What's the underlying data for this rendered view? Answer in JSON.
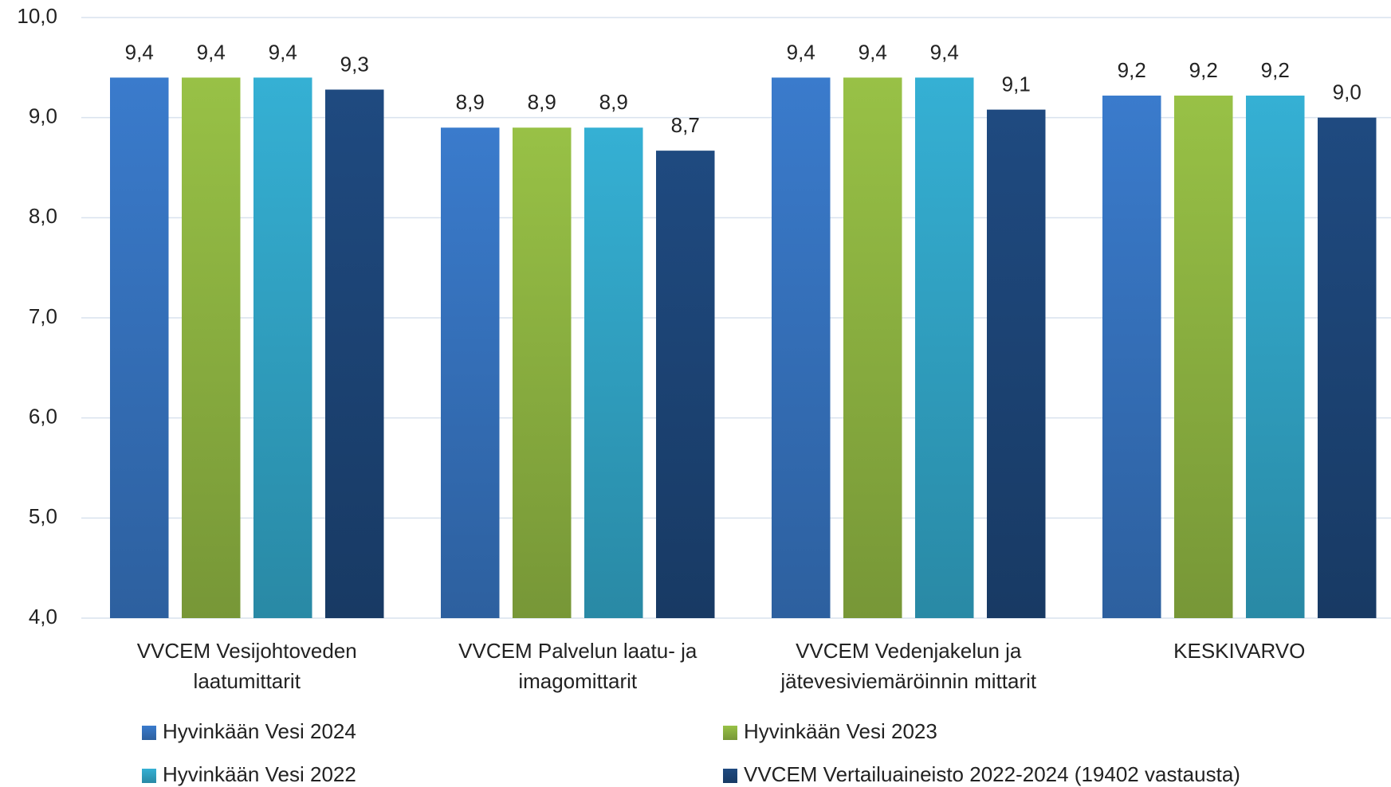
{
  "chart_data": {
    "type": "bar",
    "categories": [
      "VVCEM Vesijohtoveden laatumittarit",
      "VVCEM Palvelun laatu- ja imagomittarit",
      "VVCEM Vedenjakelun ja jätevesiviemäröinnin mittarit",
      "KESKIVARVO"
    ],
    "series": [
      {
        "name": "Hyvinkään Vesi 2024",
        "color": "#3a7bcc",
        "values": [
          9.4,
          8.9,
          9.4,
          9.22
        ],
        "value_labels": [
          "9,4",
          "8,9",
          "9,4",
          "9,2"
        ]
      },
      {
        "name": "Hyvinkään Vesi 2023",
        "color": "#98c146",
        "values": [
          9.4,
          8.9,
          9.4,
          9.22
        ],
        "value_labels": [
          "9,4",
          "8,9",
          "9,4",
          "9,2"
        ]
      },
      {
        "name": "Hyvinkään Vesi 2022",
        "color": "#35b0d4",
        "values": [
          9.4,
          8.9,
          9.4,
          9.22
        ],
        "value_labels": [
          "9,4",
          "8,9",
          "9,4",
          "9,2"
        ]
      },
      {
        "name": "VVCEM Vertailuaineisto 2022-2024 (19402 vastausta)",
        "color": "#1f4a80",
        "values": [
          9.28,
          8.67,
          9.08,
          9.0
        ],
        "value_labels": [
          "9,3",
          "8,7",
          "9,1",
          "9,0"
        ]
      }
    ],
    "ylim": [
      4,
      10
    ],
    "yticks": [
      {
        "value": 4,
        "label": "4,0"
      },
      {
        "value": 5,
        "label": "5,0"
      },
      {
        "value": 6,
        "label": "6,0"
      },
      {
        "value": 7,
        "label": "7,0"
      },
      {
        "value": 8,
        "label": "8,0"
      },
      {
        "value": 9,
        "label": "9,0"
      },
      {
        "value": 10,
        "label": "10,0"
      }
    ],
    "grid": true
  }
}
